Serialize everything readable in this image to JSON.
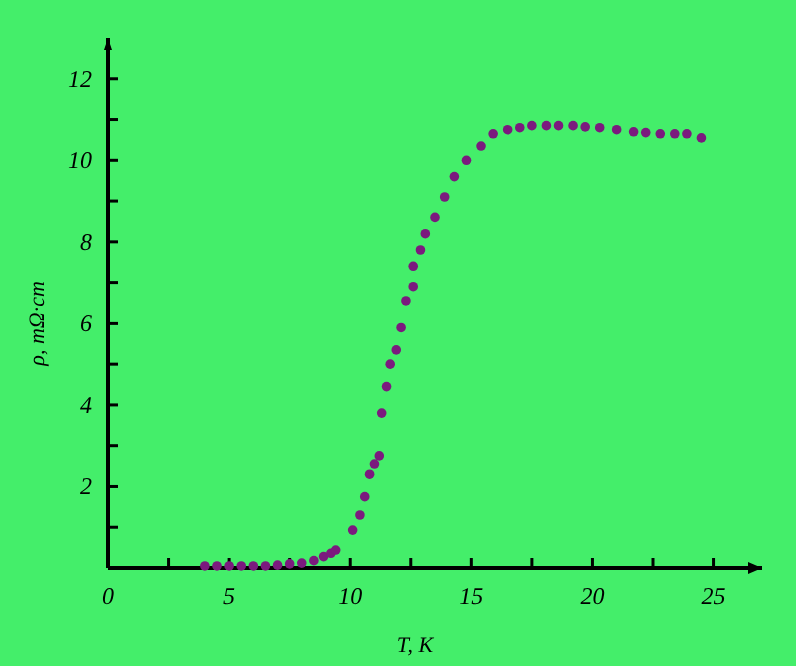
{
  "chart_data": {
    "type": "scatter",
    "xlabel": "T, K",
    "ylabel": "ρ, mΩ·cm",
    "xlim": [
      0,
      27
    ],
    "ylim": [
      0,
      13
    ],
    "xticks": [
      0,
      {
        "value": 2.5,
        "label": null
      },
      5,
      {
        "value": 7.5,
        "label": null
      },
      10,
      {
        "value": 12.5,
        "label": null
      },
      15,
      {
        "value": 17.5,
        "label": null
      },
      20,
      {
        "value": 22.5,
        "label": null
      },
      25
    ],
    "yticks": [
      {
        "value": 1,
        "label": null
      },
      2,
      {
        "value": 3,
        "label": null
      },
      4,
      {
        "value": 5,
        "label": null
      },
      6,
      {
        "value": 7,
        "label": null
      },
      8,
      {
        "value": 9,
        "label": null
      },
      10,
      {
        "value": 11,
        "label": null
      },
      12
    ],
    "marker": "circle",
    "series": [
      {
        "color": "#7b1a7e",
        "x": [
          4.0,
          4.5,
          5.0,
          5.5,
          6.0,
          6.5,
          7.0,
          7.5,
          8.0,
          8.5,
          8.9,
          9.2,
          9.4,
          10.1,
          10.4,
          10.6,
          10.8,
          11.0,
          11.2,
          11.3,
          11.5,
          11.65,
          11.9,
          12.1,
          12.3,
          12.6,
          12.6,
          12.9,
          13.1,
          13.5,
          13.9,
          14.3,
          14.8,
          15.4,
          15.9,
          16.5,
          17.0,
          17.5,
          18.1,
          18.6,
          19.2,
          19.7,
          20.3,
          21.0,
          21.7,
          22.2,
          22.8,
          23.4,
          23.9,
          24.5
        ],
        "values": [
          0.05,
          0.05,
          0.05,
          0.05,
          0.05,
          0.05,
          0.07,
          0.1,
          0.12,
          0.18,
          0.28,
          0.36,
          0.44,
          0.93,
          1.3,
          1.75,
          2.3,
          2.55,
          2.75,
          3.8,
          4.45,
          5.0,
          5.35,
          5.9,
          6.55,
          6.9,
          7.4,
          7.8,
          8.2,
          8.6,
          9.1,
          9.6,
          10.0,
          10.35,
          10.65,
          10.75,
          10.8,
          10.85,
          10.85,
          10.85,
          10.85,
          10.82,
          10.8,
          10.75,
          10.7,
          10.68,
          10.65,
          10.65,
          10.65,
          10.55
        ]
      }
    ]
  }
}
